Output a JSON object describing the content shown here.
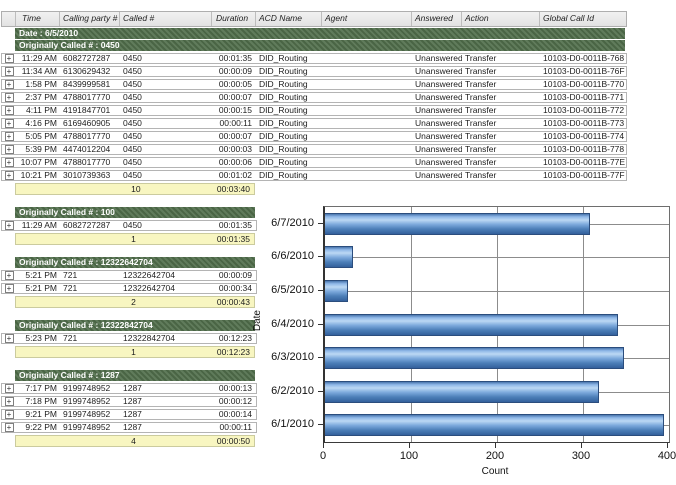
{
  "report": {
    "columns": [
      "Time",
      "Calling party #",
      "Called #",
      "Duration",
      "ACD Name",
      "Agent",
      "Answered",
      "Action",
      "Global Call Id"
    ],
    "date_band": "Date : 6/5/2010",
    "expand_icon": "+",
    "groups": [
      {
        "header": "Originally Called # : 0450",
        "full_width": true,
        "rows": [
          [
            "11:29 AM",
            "6082727287",
            "0450",
            "00:01:35",
            "DID_Routing",
            "",
            "Unanswered",
            "Transfer",
            "10103-D0-0011B-768"
          ],
          [
            "11:34 AM",
            "6130629432",
            "0450",
            "00:00:09",
            "DID_Routing",
            "",
            "Unanswered",
            "Transfer",
            "10103-D0-0011B-76F"
          ],
          [
            "1:58 PM",
            "8439999581",
            "0450",
            "00:00:05",
            "DID_Routing",
            "",
            "Unanswered",
            "Transfer",
            "10103-D0-0011B-770"
          ],
          [
            "2:37 PM",
            "4788017770",
            "0450",
            "00:00:07",
            "DID_Routing",
            "",
            "Unanswered",
            "Transfer",
            "10103-D0-0011B-771"
          ],
          [
            "4:11 PM",
            "4191847701",
            "0450",
            "00:00:15",
            "DID_Routing",
            "",
            "Unanswered",
            "Transfer",
            "10103-D0-0011B-772"
          ],
          [
            "4:16 PM",
            "6169460905",
            "0450",
            "00:00:11",
            "DID_Routing",
            "",
            "Unanswered",
            "Transfer",
            "10103-D0-0011B-773"
          ],
          [
            "5:05 PM",
            "4788017770",
            "0450",
            "00:00:07",
            "DID_Routing",
            "",
            "Unanswered",
            "Transfer",
            "10103-D0-0011B-774"
          ],
          [
            "5:39 PM",
            "4474012204",
            "0450",
            "00:00:03",
            "DID_Routing",
            "",
            "Unanswered",
            "Transfer",
            "10103-D0-0011B-778"
          ],
          [
            "10:07 PM",
            "4788017770",
            "0450",
            "00:00:06",
            "DID_Routing",
            "",
            "Unanswered",
            "Transfer",
            "10103-D0-0011B-77E"
          ],
          [
            "10:21 PM",
            "3010739363",
            "0450",
            "00:01:02",
            "DID_Routing",
            "",
            "Unanswered",
            "Transfer",
            "10103-D0-0011B-77F"
          ]
        ],
        "summary": {
          "count": "10",
          "total": "00:03:40"
        }
      },
      {
        "header": "Originally Called # : 100",
        "full_width": false,
        "rows": [
          [
            "11:29 AM",
            "6082727287",
            "0450",
            "00:01:35"
          ]
        ],
        "summary": {
          "count": "1",
          "total": "00:01:35"
        }
      },
      {
        "header": "Originally Called # : 12322642704",
        "full_width": false,
        "rows": [
          [
            "5:21 PM",
            "721",
            "12322642704",
            "00:00:09"
          ],
          [
            "5:21 PM",
            "721",
            "12322642704",
            "00:00:34"
          ]
        ],
        "summary": {
          "count": "2",
          "total": "00:00:43"
        }
      },
      {
        "header": "Originally Called # : 12322842704",
        "full_width": false,
        "rows": [
          [
            "5:23 PM",
            "721",
            "12322842704",
            "00:12:23"
          ]
        ],
        "summary": {
          "count": "1",
          "total": "00:12:23"
        }
      },
      {
        "header": "Originally Called # : 1287",
        "full_width": false,
        "rows": [
          [
            "7:17 PM",
            "9199748952",
            "1287",
            "00:00:13"
          ],
          [
            "7:18 PM",
            "9199748952",
            "1287",
            "00:00:12"
          ],
          [
            "9:21 PM",
            "9199748952",
            "1287",
            "00:00:14"
          ],
          [
            "9:22 PM",
            "9199748952",
            "1287",
            "00:00:11"
          ]
        ],
        "summary": {
          "count": "4",
          "total": "00:00:50"
        }
      }
    ]
  },
  "chart_data": {
    "type": "bar",
    "orientation": "horizontal",
    "categories": [
      "6/7/2010",
      "6/6/2010",
      "6/5/2010",
      "6/4/2010",
      "6/3/2010",
      "6/2/2010",
      "6/1/2010"
    ],
    "values": [
      308,
      32,
      27,
      341,
      348,
      319,
      394
    ],
    "xlabel": "Count",
    "ylabel": "Date",
    "xlim": [
      0,
      400
    ],
    "xticks": [
      0,
      100,
      200,
      300,
      400
    ],
    "grid": true,
    "legend_position": "none",
    "bar_color_top": "#bcd8f4",
    "bar_color_bottom": "#2f5b96",
    "grid_color": "#8c8c8c"
  }
}
